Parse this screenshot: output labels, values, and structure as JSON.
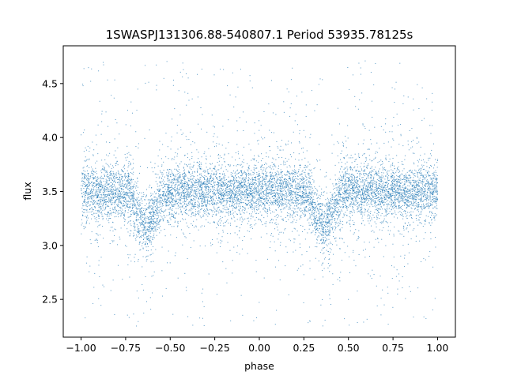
{
  "chart_data": {
    "type": "scatter",
    "title": "1SWASPJ131306.88-540807.1 Period 53935.78125s",
    "xlabel": "phase",
    "ylabel": "flux",
    "xlim": [
      -1.1,
      1.1
    ],
    "ylim": [
      2.15,
      4.85
    ],
    "x_ticks": [
      -1.0,
      -0.75,
      -0.5,
      -0.25,
      0.0,
      0.25,
      0.5,
      0.75,
      1.0
    ],
    "x_tick_labels": [
      "−1.00",
      "−0.75",
      "−0.50",
      "−0.25",
      "0.00",
      "0.25",
      "0.50",
      "0.75",
      "1.00"
    ],
    "y_ticks": [
      2.5,
      3.0,
      3.5,
      4.0,
      4.5
    ],
    "y_tick_labels": [
      "2.5",
      "3.0",
      "3.5",
      "4.0",
      "4.5"
    ],
    "grid": false,
    "marker_color": "#1f77b4",
    "phase_range": [
      -1.0,
      1.0
    ],
    "baseline_flux": 3.5,
    "eclipses": [
      {
        "center_phase": -0.635,
        "min_flux": 3.15,
        "half_width_phase": 0.1
      },
      {
        "center_phase": 0.365,
        "min_flux": 3.15,
        "half_width_phase": 0.1
      }
    ],
    "flux_scatter_core": 0.12,
    "flux_outlier_range": [
      2.25,
      4.72
    ]
  }
}
